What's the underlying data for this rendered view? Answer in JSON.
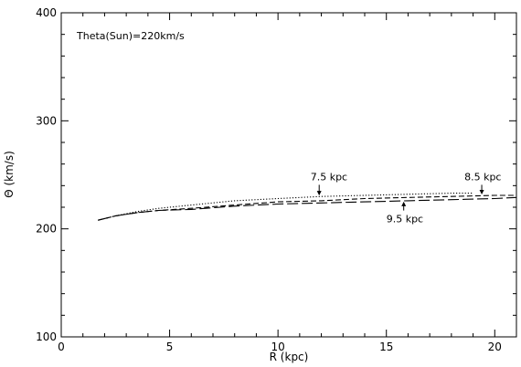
{
  "chart_data": {
    "type": "line",
    "title": "",
    "annotation_text": "Theta(Sun)=220km/s",
    "xlabel": "R (kpc)",
    "ylabel": "Θ (km/s)",
    "xlim": [
      0,
      21
    ],
    "ylim": [
      100,
      400
    ],
    "x_ticks": [
      0,
      5,
      10,
      15,
      20
    ],
    "y_ticks": [
      100,
      200,
      300,
      400
    ],
    "x_tick_labels": [
      "0",
      "5",
      "10",
      "15",
      "20"
    ],
    "y_tick_labels": [
      "100",
      "200",
      "300",
      "400"
    ],
    "grid": false,
    "legend": "none",
    "series": [
      {
        "name": "7.5 kpc",
        "style": "dotted",
        "x": [
          1.7,
          2.5,
          3.5,
          4.5,
          6,
          8,
          10,
          12,
          14,
          16,
          18,
          19
        ],
        "y": [
          208,
          212,
          216,
          219,
          222,
          226,
          228,
          230,
          231,
          232,
          233,
          233
        ]
      },
      {
        "name": "8.5 kpc",
        "style": "dashed",
        "x": [
          1.7,
          2.5,
          3.5,
          4.5,
          6,
          8,
          10,
          12,
          14,
          16,
          18,
          20,
          21
        ],
        "y": [
          208,
          212,
          215,
          217,
          219,
          222,
          225,
          226,
          228,
          229,
          230,
          231,
          231
        ]
      },
      {
        "name": "9.5 kpc",
        "style": "longdash",
        "x": [
          1.7,
          2.5,
          3.5,
          4.5,
          6,
          8,
          10,
          12,
          14,
          16,
          18,
          20,
          21
        ],
        "y": [
          208,
          212,
          215,
          217,
          218,
          221,
          223,
          224,
          225,
          226,
          227,
          228,
          229
        ]
      }
    ],
    "curve_labels": [
      {
        "text": "7.5 kpc",
        "x": 11.5,
        "y": 245,
        "arrow_to": [
          11.9,
          230
        ]
      },
      {
        "text": "8.5 kpc",
        "x": 18.6,
        "y": 245,
        "arrow_to": [
          19.4,
          231
        ]
      },
      {
        "text": "9.5 kpc",
        "x": 15.0,
        "y": 206,
        "arrow_to": [
          15.8,
          226
        ]
      }
    ]
  }
}
